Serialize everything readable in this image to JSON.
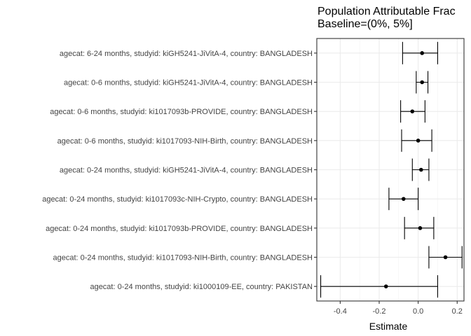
{
  "chart_data": {
    "type": "forest",
    "title_lines": [
      "Population Attributable Frac",
      "Baseline=(0%, 5%]"
    ],
    "xlabel": "Estimate",
    "ylabel": "",
    "xlim": [
      -0.52,
      0.235
    ],
    "xticks": [
      -0.4,
      -0.2,
      0.0,
      0.2
    ],
    "xtick_labels": [
      "-0.4",
      "-0.2",
      "0.0",
      "0.2"
    ],
    "grid": true,
    "categories": [
      "agecat: 6-24 months, studyid: kiGH5241-JiVitA-4, country: BANGLADESH",
      "agecat: 0-6 months, studyid: kiGH5241-JiVitA-4, country: BANGLADESH",
      "agecat: 0-6 months, studyid: ki1017093b-PROVIDE, country: BANGLADESH",
      "agecat: 0-6 months, studyid: ki1017093-NIH-Birth, country: BANGLADESH",
      "agecat: 0-24 months, studyid: kiGH5241-JiVitA-4, country: BANGLADESH",
      "agecat: 0-24 months, studyid: ki1017093c-NIH-Crypto, country: BANGLADESH",
      "agecat: 0-24 months, studyid: ki1017093b-PROVIDE, country: BANGLADESH",
      "agecat: 0-24 months, studyid: ki1017093-NIH-Birth, country: BANGLADESH",
      "agecat: 0-24 months, studyid: ki1000109-EE, country: PAKISTAN"
    ],
    "estimates": [
      0.02,
      0.02,
      -0.03,
      0.0,
      0.015,
      -0.075,
      0.01,
      0.14,
      -0.165
    ],
    "ci_lower": [
      -0.08,
      -0.01,
      -0.09,
      -0.085,
      -0.03,
      -0.15,
      -0.07,
      0.055,
      -0.5
    ],
    "ci_upper": [
      0.1,
      0.05,
      0.035,
      0.07,
      0.055,
      0.0,
      0.08,
      0.225,
      0.1
    ]
  }
}
